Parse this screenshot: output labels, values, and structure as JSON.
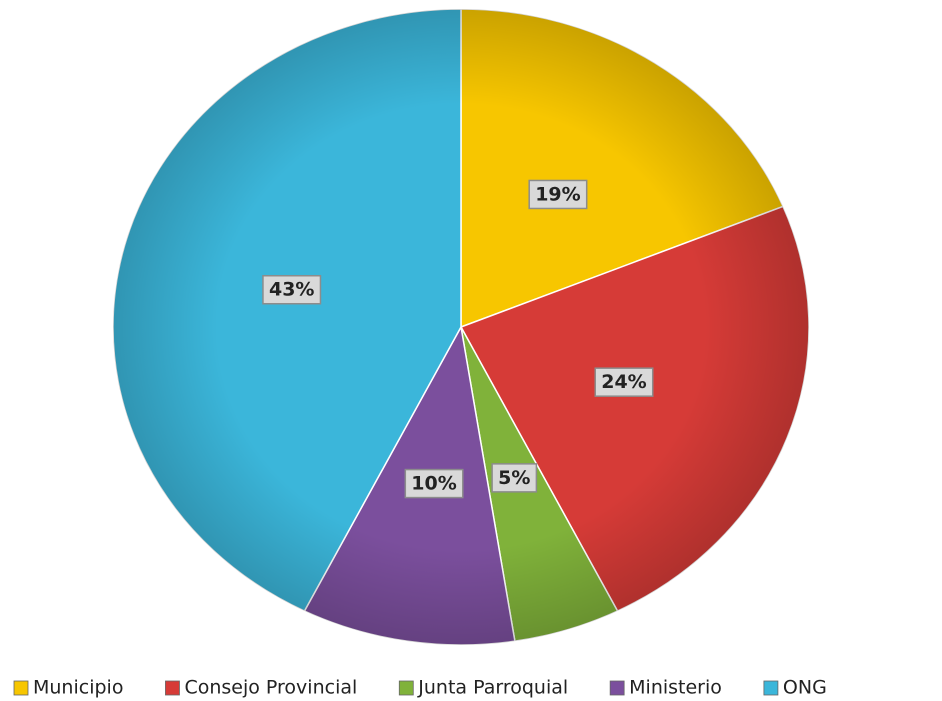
{
  "chart_data": {
    "type": "pie",
    "categories": [
      "Municipio",
      "Consejo Provincial",
      "Junta Parroquial",
      "Ministerio",
      "ONG"
    ],
    "values": [
      19,
      24,
      5,
      10,
      43
    ],
    "value_labels": [
      "19%",
      "24%",
      "5%",
      "10%",
      "43%"
    ],
    "colors": [
      "#f7c600",
      "#d63b37",
      "#80b23a",
      "#7b4f9d",
      "#3bb6da"
    ],
    "legend": "bottom"
  }
}
